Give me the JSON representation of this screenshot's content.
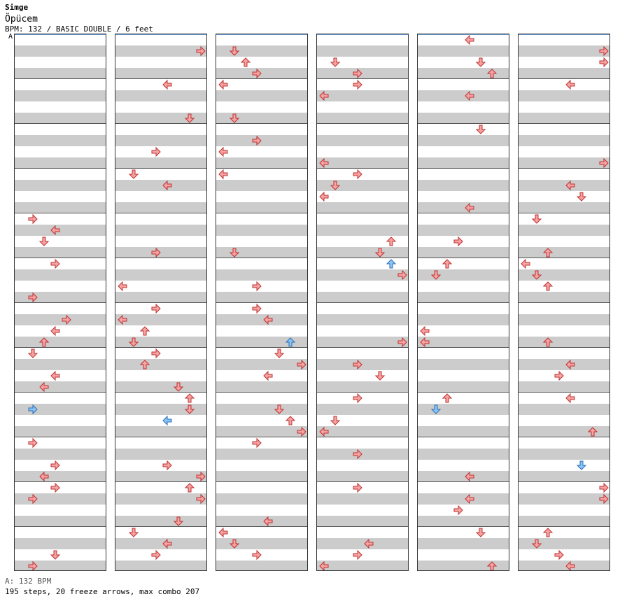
{
  "song": {
    "title": "Simge",
    "artist": "Öpücem",
    "meta_line": "BPM: 132 / BASIC DOUBLE / 6 feet",
    "bpm_marker": "A"
  },
  "footer": {
    "bpm_line": "A: 132 BPM",
    "stats_line": "195 steps, 20 freeze arrows, max combo 207"
  },
  "chart_data": {
    "type": "step-chart",
    "bpm": 132,
    "difficulty": "BASIC DOUBLE",
    "feet": 6,
    "steps": 195,
    "freeze_arrows": 20,
    "max_combo": 207,
    "columns": 6,
    "measures_per_column": 12,
    "lanes": 8,
    "arrow_color_default": "#f5a3a3",
    "arrow_color_blue": "#8cc4f4",
    "freeze_color": "#ccffcc",
    "notes": [
      [
        0,
        4,
        1,
        "r"
      ],
      [
        0,
        5,
        1,
        "r"
      ],
      [
        0,
        4,
        2,
        "d"
      ],
      [
        0,
        4,
        3,
        "l"
      ],
      [
        0,
        5,
        3,
        "r"
      ],
      [
        0,
        6,
        2,
        "u"
      ],
      [
        0,
        6,
        3,
        "l"
      ],
      [
        0,
        6,
        4,
        "r"
      ],
      [
        0,
        7,
        1,
        "d"
      ],
      [
        0,
        7,
        2,
        "l"
      ],
      [
        0,
        7,
        3,
        "l"
      ],
      [
        0,
        8,
        1,
        "r"
      ],
      [
        0,
        9,
        1,
        "r"
      ],
      [
        0,
        9,
        2,
        "l"
      ],
      [
        0,
        9,
        3,
        "r"
      ],
      [
        0,
        10,
        1,
        "r"
      ],
      [
        0,
        10,
        3,
        "r"
      ],
      [
        0,
        11,
        1,
        "r"
      ],
      [
        0,
        11,
        3,
        "d"
      ],
      [
        1,
        0,
        7,
        "r"
      ],
      [
        1,
        1,
        4,
        "l"
      ],
      [
        1,
        1,
        6,
        "d"
      ],
      [
        1,
        2,
        3,
        "r"
      ],
      [
        1,
        3,
        4,
        "l"
      ],
      [
        1,
        3,
        1,
        "d"
      ],
      [
        1,
        4,
        3,
        "r"
      ],
      [
        1,
        5,
        0,
        "l"
      ],
      [
        1,
        6,
        0,
        "l"
      ],
      [
        1,
        6,
        3,
        "r"
      ],
      [
        1,
        6,
        1,
        "d"
      ],
      [
        1,
        6,
        2,
        "u"
      ],
      [
        1,
        7,
        2,
        "u"
      ],
      [
        1,
        7,
        3,
        "r"
      ],
      [
        1,
        7,
        5,
        "d"
      ],
      [
        1,
        8,
        4,
        "l"
      ],
      [
        1,
        8,
        6,
        "d"
      ],
      [
        1,
        8,
        6,
        "u"
      ],
      [
        1,
        9,
        7,
        "r"
      ],
      [
        1,
        9,
        4,
        "r"
      ],
      [
        1,
        10,
        7,
        "r"
      ],
      [
        1,
        10,
        6,
        "u"
      ],
      [
        1,
        10,
        5,
        "d"
      ],
      [
        1,
        11,
        3,
        "r"
      ],
      [
        1,
        11,
        4,
        "l"
      ],
      [
        1,
        11,
        1,
        "d"
      ],
      [
        2,
        0,
        3,
        "r"
      ],
      [
        2,
        0,
        2,
        "u"
      ],
      [
        2,
        0,
        1,
        "d"
      ],
      [
        2,
        1,
        0,
        "l"
      ],
      [
        2,
        1,
        1,
        "d"
      ],
      [
        2,
        2,
        0,
        "l"
      ],
      [
        2,
        2,
        3,
        "r"
      ],
      [
        2,
        3,
        0,
        "l"
      ],
      [
        2,
        4,
        1,
        "d"
      ],
      [
        2,
        5,
        3,
        "r"
      ],
      [
        2,
        6,
        4,
        "l"
      ],
      [
        2,
        6,
        3,
        "r"
      ],
      [
        2,
        6,
        6,
        "u"
      ],
      [
        2,
        7,
        4,
        "l"
      ],
      [
        2,
        7,
        7,
        "r"
      ],
      [
        2,
        7,
        5,
        "d"
      ],
      [
        2,
        8,
        7,
        "r"
      ],
      [
        2,
        8,
        6,
        "u"
      ],
      [
        2,
        8,
        5,
        "d"
      ],
      [
        2,
        9,
        3,
        "r"
      ],
      [
        2,
        10,
        4,
        "l"
      ],
      [
        2,
        11,
        3,
        "r"
      ],
      [
        2,
        11,
        1,
        "d"
      ],
      [
        2,
        11,
        0,
        "l"
      ],
      [
        3,
        0,
        3,
        "r"
      ],
      [
        3,
        0,
        1,
        "d"
      ],
      [
        3,
        1,
        0,
        "l"
      ],
      [
        3,
        1,
        3,
        "r"
      ],
      [
        3,
        2,
        0,
        "l"
      ],
      [
        3,
        3,
        0,
        "l"
      ],
      [
        3,
        3,
        1,
        "d"
      ],
      [
        3,
        3,
        3,
        "r"
      ],
      [
        3,
        4,
        5,
        "d"
      ],
      [
        3,
        4,
        6,
        "u"
      ],
      [
        3,
        5,
        7,
        "r"
      ],
      [
        3,
        5,
        6,
        "u"
      ],
      [
        3,
        6,
        7,
        "r"
      ],
      [
        3,
        7,
        5,
        "d"
      ],
      [
        3,
        7,
        3,
        "r"
      ],
      [
        3,
        8,
        3,
        "r"
      ],
      [
        3,
        8,
        0,
        "l"
      ],
      [
        3,
        8,
        1,
        "d"
      ],
      [
        3,
        9,
        3,
        "r"
      ],
      [
        3,
        10,
        3,
        "r"
      ],
      [
        3,
        11,
        0,
        "l"
      ],
      [
        3,
        11,
        3,
        "r"
      ],
      [
        3,
        11,
        4,
        "l"
      ],
      [
        4,
        0,
        4,
        "l"
      ],
      [
        4,
        0,
        6,
        "u"
      ],
      [
        4,
        0,
        5,
        "d"
      ],
      [
        4,
        1,
        4,
        "l"
      ],
      [
        4,
        2,
        5,
        "d"
      ],
      [
        4,
        3,
        4,
        "l"
      ],
      [
        4,
        4,
        3,
        "r"
      ],
      [
        4,
        5,
        1,
        "d"
      ],
      [
        4,
        5,
        2,
        "u"
      ],
      [
        4,
        6,
        0,
        "l"
      ],
      [
        4,
        6,
        0,
        "l"
      ],
      [
        4,
        8,
        1,
        "d"
      ],
      [
        4,
        8,
        2,
        "u"
      ],
      [
        4,
        9,
        4,
        "l"
      ],
      [
        4,
        10,
        3,
        "r"
      ],
      [
        4,
        10,
        4,
        "l"
      ],
      [
        4,
        11,
        5,
        "d"
      ],
      [
        4,
        11,
        6,
        "u"
      ],
      [
        5,
        0,
        7,
        "r"
      ],
      [
        5,
        0,
        7,
        "r"
      ],
      [
        5,
        1,
        4,
        "l"
      ],
      [
        5,
        2,
        7,
        "r"
      ],
      [
        5,
        3,
        5,
        "d"
      ],
      [
        5,
        3,
        4,
        "l"
      ],
      [
        5,
        4,
        1,
        "d"
      ],
      [
        5,
        4,
        2,
        "u"
      ],
      [
        5,
        5,
        2,
        "u"
      ],
      [
        5,
        5,
        1,
        "d"
      ],
      [
        5,
        5,
        0,
        "l"
      ],
      [
        5,
        6,
        2,
        "u"
      ],
      [
        5,
        7,
        3,
        "r"
      ],
      [
        5,
        7,
        4,
        "l"
      ],
      [
        5,
        8,
        4,
        "l"
      ],
      [
        5,
        8,
        6,
        "u"
      ],
      [
        5,
        9,
        5,
        "d"
      ],
      [
        5,
        10,
        7,
        "r"
      ],
      [
        5,
        10,
        7,
        "r"
      ],
      [
        5,
        11,
        4,
        "l"
      ],
      [
        5,
        11,
        3,
        "r"
      ],
      [
        5,
        11,
        1,
        "d"
      ],
      [
        5,
        11,
        2,
        "u"
      ]
    ]
  }
}
